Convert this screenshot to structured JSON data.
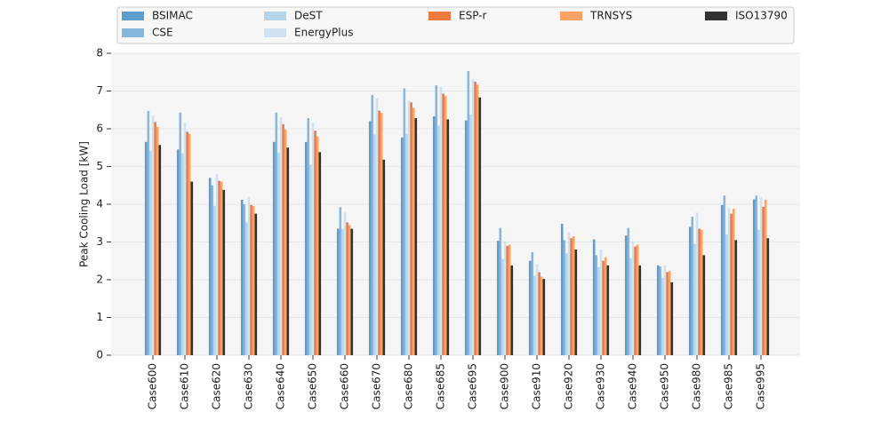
{
  "chart_data": {
    "type": "bar",
    "y_label": "Peak Cooling Load [kW]",
    "categories": [
      "Case600",
      "Case610",
      "Case620",
      "Case630",
      "Case640",
      "Case650",
      "Case660",
      "Case670",
      "Case680",
      "Case685",
      "Case695",
      "Case900",
      "Case910",
      "Case920",
      "Case930",
      "Case940",
      "Case950",
      "Case980",
      "Case985",
      "Case995"
    ],
    "series": [
      {
        "name": "BSIMAC",
        "color": "#5e9ecf",
        "values": [
          5.65,
          5.45,
          4.7,
          4.12,
          5.65,
          5.65,
          3.35,
          6.2,
          5.77,
          6.33,
          6.22,
          3.03,
          2.5,
          3.48,
          3.07,
          3.17,
          2.38,
          3.4,
          3.98,
          4.13
        ]
      },
      {
        "name": "CSE",
        "color": "#86b8dd",
        "values": [
          6.47,
          6.43,
          4.5,
          4.0,
          6.43,
          6.28,
          3.92,
          6.9,
          7.07,
          7.15,
          7.53,
          3.37,
          2.73,
          3.05,
          2.65,
          3.37,
          2.35,
          3.67,
          4.23,
          4.23
        ]
      },
      {
        "name": "DeST",
        "color": "#b5d4e9",
        "values": [
          5.42,
          5.35,
          3.95,
          3.52,
          5.37,
          5.05,
          3.35,
          5.85,
          5.87,
          6.08,
          6.37,
          2.55,
          2.1,
          2.7,
          2.33,
          2.57,
          2.05,
          2.95,
          3.2,
          3.32
        ]
      },
      {
        "name": "EnergyPlus",
        "color": "#cfe1f2",
        "values": [
          6.35,
          6.15,
          4.8,
          4.2,
          6.3,
          6.15,
          3.78,
          6.8,
          6.75,
          7.12,
          7.32,
          3.02,
          2.4,
          3.27,
          2.8,
          3.02,
          2.38,
          3.78,
          3.9,
          4.18
        ]
      },
      {
        "name": "ESP-r",
        "color": "#ee7940",
        "values": [
          6.18,
          5.92,
          4.62,
          3.98,
          6.12,
          5.95,
          3.52,
          6.48,
          6.7,
          6.93,
          7.25,
          2.9,
          2.2,
          3.1,
          2.5,
          2.88,
          2.2,
          3.35,
          3.75,
          3.93
        ]
      },
      {
        "name": "TRNSYS",
        "color": "#fda265",
        "values": [
          6.05,
          5.87,
          4.6,
          3.95,
          5.98,
          5.8,
          3.45,
          6.42,
          6.55,
          6.87,
          7.17,
          2.93,
          2.08,
          3.15,
          2.6,
          2.93,
          2.23,
          3.32,
          3.88,
          4.12
        ]
      },
      {
        "name": "ISO13790",
        "color": "#333333",
        "values": [
          5.57,
          4.6,
          4.38,
          3.75,
          5.5,
          5.38,
          3.35,
          5.18,
          6.28,
          6.25,
          6.83,
          2.38,
          2.02,
          2.8,
          2.38,
          2.38,
          1.93,
          2.65,
          3.05,
          3.1
        ]
      }
    ],
    "ylim": [
      0,
      8
    ],
    "yticks": [
      0,
      1,
      2,
      3,
      4,
      5,
      6,
      7,
      8
    ],
    "grid": true,
    "legend_position": "top"
  }
}
